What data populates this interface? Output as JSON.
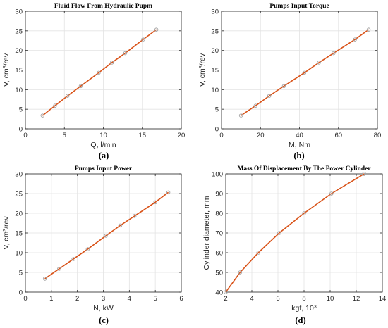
{
  "colors": {
    "line": "#d95319",
    "marker": "#a0a0a0",
    "axis": "#262626",
    "grid": "#e3e3e3"
  },
  "chart_data": [
    {
      "type": "line",
      "title": "Fluid Flow From Hydraulic Pupm",
      "xlabel": "Q, l/min",
      "ylabel": "V, cm³/rev",
      "xlim": [
        0,
        20
      ],
      "ylim": [
        0,
        30
      ],
      "xticks": [
        0,
        5,
        10,
        15,
        20
      ],
      "yticks": [
        0,
        5,
        10,
        15,
        20,
        25,
        30
      ],
      "grid": true,
      "caption": "(a)",
      "series": [
        {
          "x": [
            2.2,
            3.8,
            5.4,
            7.1,
            9.4,
            11.1,
            12.8,
            15.1,
            16.8
          ],
          "y": [
            3.4,
            5.9,
            8.4,
            10.9,
            14.3,
            16.9,
            19.3,
            22.8,
            25.3
          ]
        }
      ]
    },
    {
      "type": "line",
      "title": "Pumps Input Torque",
      "xlabel": "M, Nm",
      "ylabel": "V, cm³/rev",
      "xlim": [
        0,
        80
      ],
      "ylim": [
        0,
        30
      ],
      "xticks": [
        0,
        20,
        40,
        60,
        80
      ],
      "yticks": [
        0,
        5,
        10,
        15,
        20,
        25,
        30
      ],
      "grid": true,
      "caption": "(b)",
      "series": [
        {
          "x": [
            10,
            17.5,
            24.5,
            32,
            42.5,
            50,
            57.5,
            68.5,
            75.5
          ],
          "y": [
            3.4,
            5.9,
            8.4,
            10.9,
            14.3,
            16.9,
            19.3,
            22.8,
            25.3
          ]
        }
      ]
    },
    {
      "type": "line",
      "title": "Pumps Input Power",
      "xlabel": "N, kW",
      "ylabel": "V, cm³/rev",
      "xlim": [
        0,
        6
      ],
      "ylim": [
        0,
        30
      ],
      "xticks": [
        0,
        1,
        2,
        3,
        4,
        5,
        6
      ],
      "yticks": [
        0,
        5,
        10,
        15,
        20,
        25,
        30
      ],
      "grid": true,
      "caption": "(c)",
      "series": [
        {
          "x": [
            0.75,
            1.3,
            1.85,
            2.4,
            3.1,
            3.65,
            4.2,
            5.0,
            5.5
          ],
          "y": [
            3.4,
            5.9,
            8.4,
            10.9,
            14.3,
            16.9,
            19.3,
            22.8,
            25.3
          ]
        }
      ]
    },
    {
      "type": "line",
      "title": "Mass Of Displacement By The Power Cylinder",
      "xlabel": "kgf, 10³",
      "ylabel": "Cylinder diameter, mm",
      "xlim": [
        2,
        14
      ],
      "ylim": [
        40,
        100
      ],
      "xticks": [
        2,
        4,
        6,
        8,
        10,
        12,
        14
      ],
      "yticks": [
        40,
        50,
        60,
        70,
        80,
        90,
        100
      ],
      "grid": true,
      "caption": "(d)",
      "series": [
        {
          "x": [
            2.0,
            3.1,
            4.5,
            6.1,
            8.0,
            10.1,
            12.6
          ],
          "y": [
            40,
            50,
            60,
            70,
            80,
            90,
            100
          ]
        }
      ]
    }
  ]
}
